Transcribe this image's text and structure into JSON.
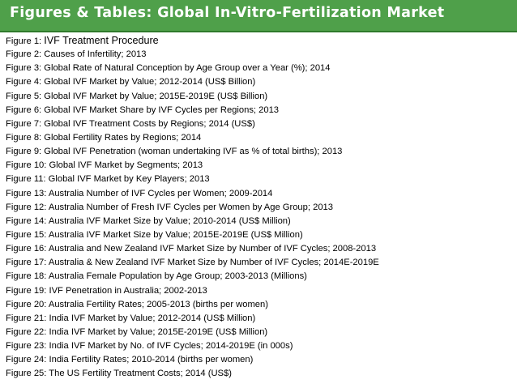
{
  "header": {
    "title": "Figures & Tables: Global In-Vitro-Fertilization Market",
    "background_color": "#4fa04a",
    "text_color": "#ffffff"
  },
  "figures": [
    {
      "label": "Figure 1:",
      "title": "IVF Treatment Procedure"
    },
    {
      "label": "Figure 2:",
      "title": "Causes of Infertility; 2013"
    },
    {
      "label": "Figure 3:",
      "title": "Global Rate of Natural Conception by Age Group over a Year (%); 2014"
    },
    {
      "label": "Figure 4:",
      "title": "Global IVF Market by Value; 2012-2014 (US$ Billion)"
    },
    {
      "label": "Figure 5:",
      "title": "Global IVF Market by Value; 2015E-2019E (US$ Billion)"
    },
    {
      "label": "Figure 6:",
      "title": "Global IVF Market Share by IVF Cycles per Regions; 2013"
    },
    {
      "label": "Figure 7:",
      "title": "Global IVF Treatment Costs by Regions; 2014 (US$)"
    },
    {
      "label": "Figure 8:",
      "title": "Global Fertility Rates by Regions; 2014"
    },
    {
      "label": "Figure 9:",
      "title": "Global IVF Penetration (woman undertaking IVF as % of total births); 2013"
    },
    {
      "label": "Figure 10:",
      "title": "Global IVF Market by Segments; 2013"
    },
    {
      "label": "Figure 11:",
      "title": "Global IVF Market by Key Players; 2013"
    },
    {
      "label": "Figure 13:",
      "title": "Australia Number of IVF Cycles per Women; 2009-2014"
    },
    {
      "label": "Figure 12:",
      "title": "Australia Number of Fresh IVF Cycles per Women by Age Group; 2013"
    },
    {
      "label": "Figure 14:",
      "title": "Australia IVF Market Size by Value; 2010-2014 (US$ Million)"
    },
    {
      "label": "Figure 15:",
      "title": "Australia IVF Market Size by Value; 2015E-2019E (US$ Million)"
    },
    {
      "label": "Figure 16:",
      "title": "Australia and New Zealand IVF Market Size by Number of IVF Cycles; 2008-2013"
    },
    {
      "label": "Figure 17:",
      "title": "Australia & New Zealand IVF Market Size by Number of IVF Cycles; 2014E-2019E"
    },
    {
      "label": "Figure 18:",
      "title": "Australia Female Population by Age Group; 2003-2013 (Millions)"
    },
    {
      "label": "Figure 19:",
      "title": "IVF Penetration in Australia; 2002-2013"
    },
    {
      "label": "Figure 20:",
      "title": "Australia Fertility Rates; 2005-2013 (births per women)"
    },
    {
      "label": "Figure 21:",
      "title": "India IVF Market by Value; 2012-2014 (US$ Million)"
    },
    {
      "label": "Figure 22:",
      "title": "India IVF Market by Value; 2015E-2019E (US$ Million)"
    },
    {
      "label": "Figure 23:",
      "title": "India IVF Market by No. of IVF Cycles; 2014-2019E (in 000s)"
    },
    {
      "label": "Figure 24:",
      "title": "India Fertility Rates; 2010-2014 (births per women)"
    },
    {
      "label": "Figure 25:",
      "title": "The US Fertility Treatment Costs; 2014 (US$)"
    }
  ]
}
